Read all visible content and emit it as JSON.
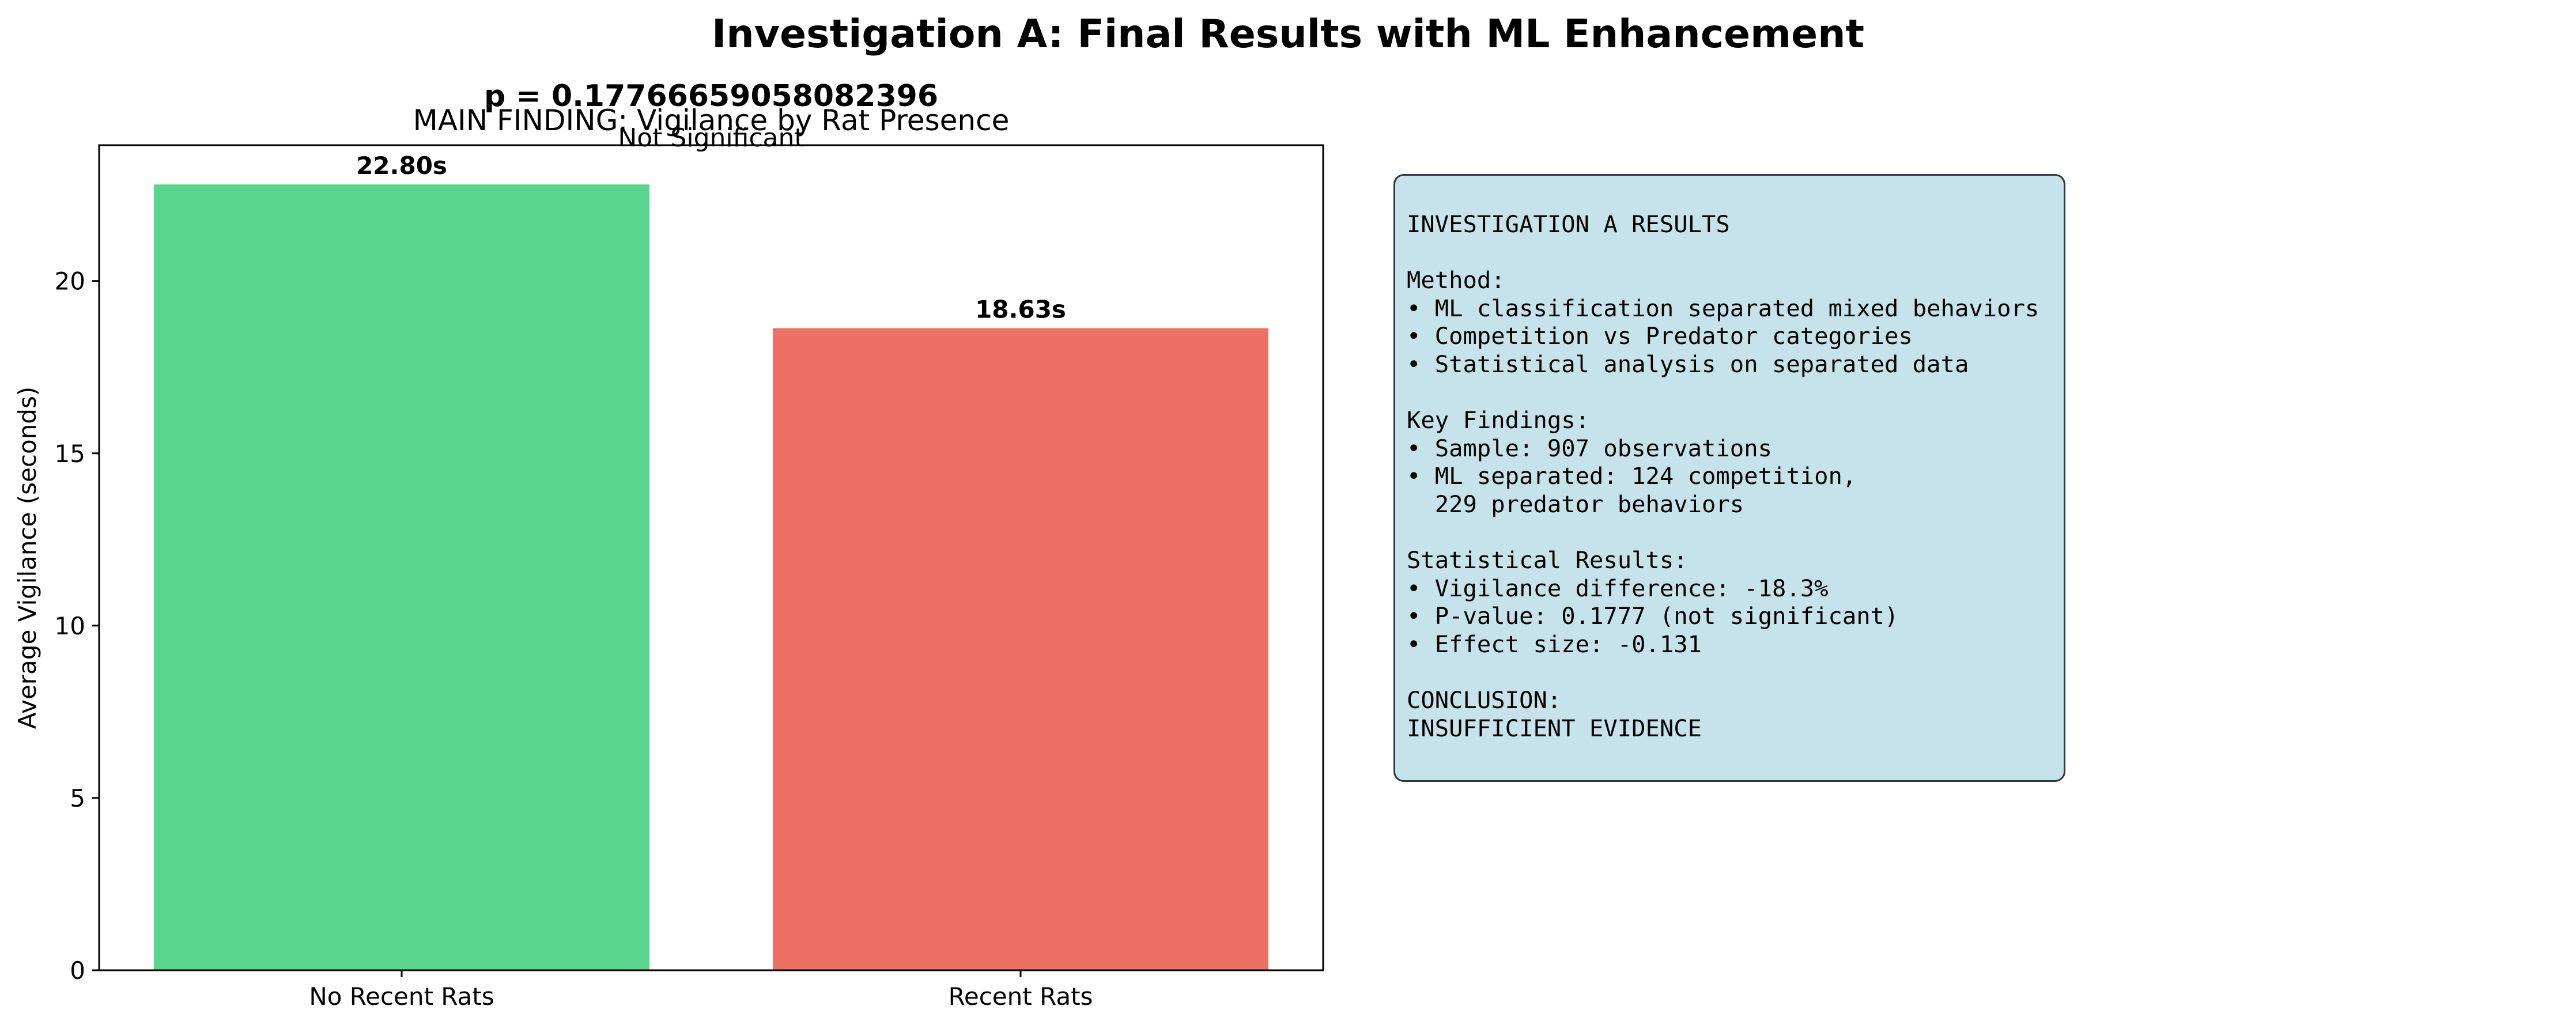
{
  "figure": {
    "suptitle": "Investigation A: Final Results with ML Enhancement"
  },
  "chart_data": {
    "type": "bar",
    "title": "MAIN FINDING: Vigilance by Rat Presence",
    "annotation_pvalue": "p = 0.17766659058082396",
    "annotation_significance": "Not Significant",
    "xlabel": "",
    "ylabel": "Average Vigilance (seconds)",
    "categories": [
      "No Recent Rats",
      "Recent Rats"
    ],
    "values": [
      22.8,
      18.63
    ],
    "value_labels": [
      "22.80s",
      "18.63s"
    ],
    "colors": [
      "#58d68d",
      "#ec7063"
    ],
    "ylim": [
      0,
      23.94
    ],
    "yticks": [
      0,
      5,
      10,
      15,
      20
    ],
    "grid": false,
    "legend": "none"
  },
  "info_box": {
    "lines": [
      "INVESTIGATION A RESULTS",
      "",
      "Method:",
      "• ML classification separated mixed behaviors",
      "• Competition vs Predator categories",
      "• Statistical analysis on separated data",
      "",
      "Key Findings:",
      "• Sample: 907 observations",
      "• ML separated: 124 competition,",
      "  229 predator behaviors",
      "",
      "Statistical Results:",
      "• Vigilance difference: -18.3%",
      "• P-value: 0.1777 (not significant)",
      "• Effect size: -0.131",
      "",
      "CONCLUSION:",
      "INSUFFICIENT EVIDENCE"
    ]
  }
}
